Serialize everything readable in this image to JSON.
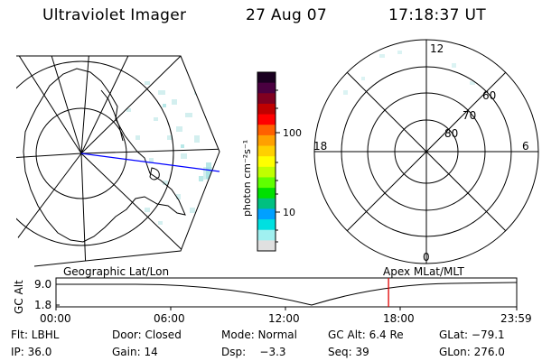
{
  "header": {
    "instrument": "Ultraviolet Imager",
    "date": "27 Aug 07",
    "time": "17:18:37 UT"
  },
  "colorbar": {
    "unit_label": "photon cm⁻²s⁻¹",
    "ticks": [
      "100",
      "10"
    ],
    "colors": [
      "#1a0020",
      "#4a0040",
      "#800020",
      "#c00000",
      "#ff0000",
      "#ff6000",
      "#ffa000",
      "#ffd000",
      "#ffff00",
      "#c0ff00",
      "#60ff00",
      "#00e000",
      "#00c080",
      "#00a0ff",
      "#00e0e0",
      "#a0f0f0",
      "#e0e0e0"
    ]
  },
  "polar_right": {
    "mlt_labels": {
      "top": "12",
      "left": "18",
      "right": "6",
      "bottom": "0"
    },
    "lat_labels": [
      "60",
      "70",
      "80"
    ]
  },
  "left_map": {
    "coord_label": "Geographic Lat/Lon"
  },
  "orbit_panel": {
    "coord_label_right": "Apex MLat/MLT",
    "y_axis_label": "GC Alt",
    "y_ticks": [
      "9.0",
      "1.8"
    ],
    "x_ticks": [
      "00:00",
      "06:00",
      "12:00",
      "18:00",
      "23:59"
    ],
    "marker_color": "#e00000",
    "current_time_hours": 17.31
  },
  "status": {
    "flt": "Flt: LBHL",
    "door": "Door: Closed",
    "mode": "Mode: Normal",
    "gc_alt": "GC Alt: 6.4 Re",
    "glat": "GLat: −79.1",
    "ip": "IP: 36.0",
    "gain": "Gain: 14",
    "dsp": "Dsp:    −3.3",
    "seq": "Seq: 39",
    "glon": "GLon: 276.0"
  }
}
